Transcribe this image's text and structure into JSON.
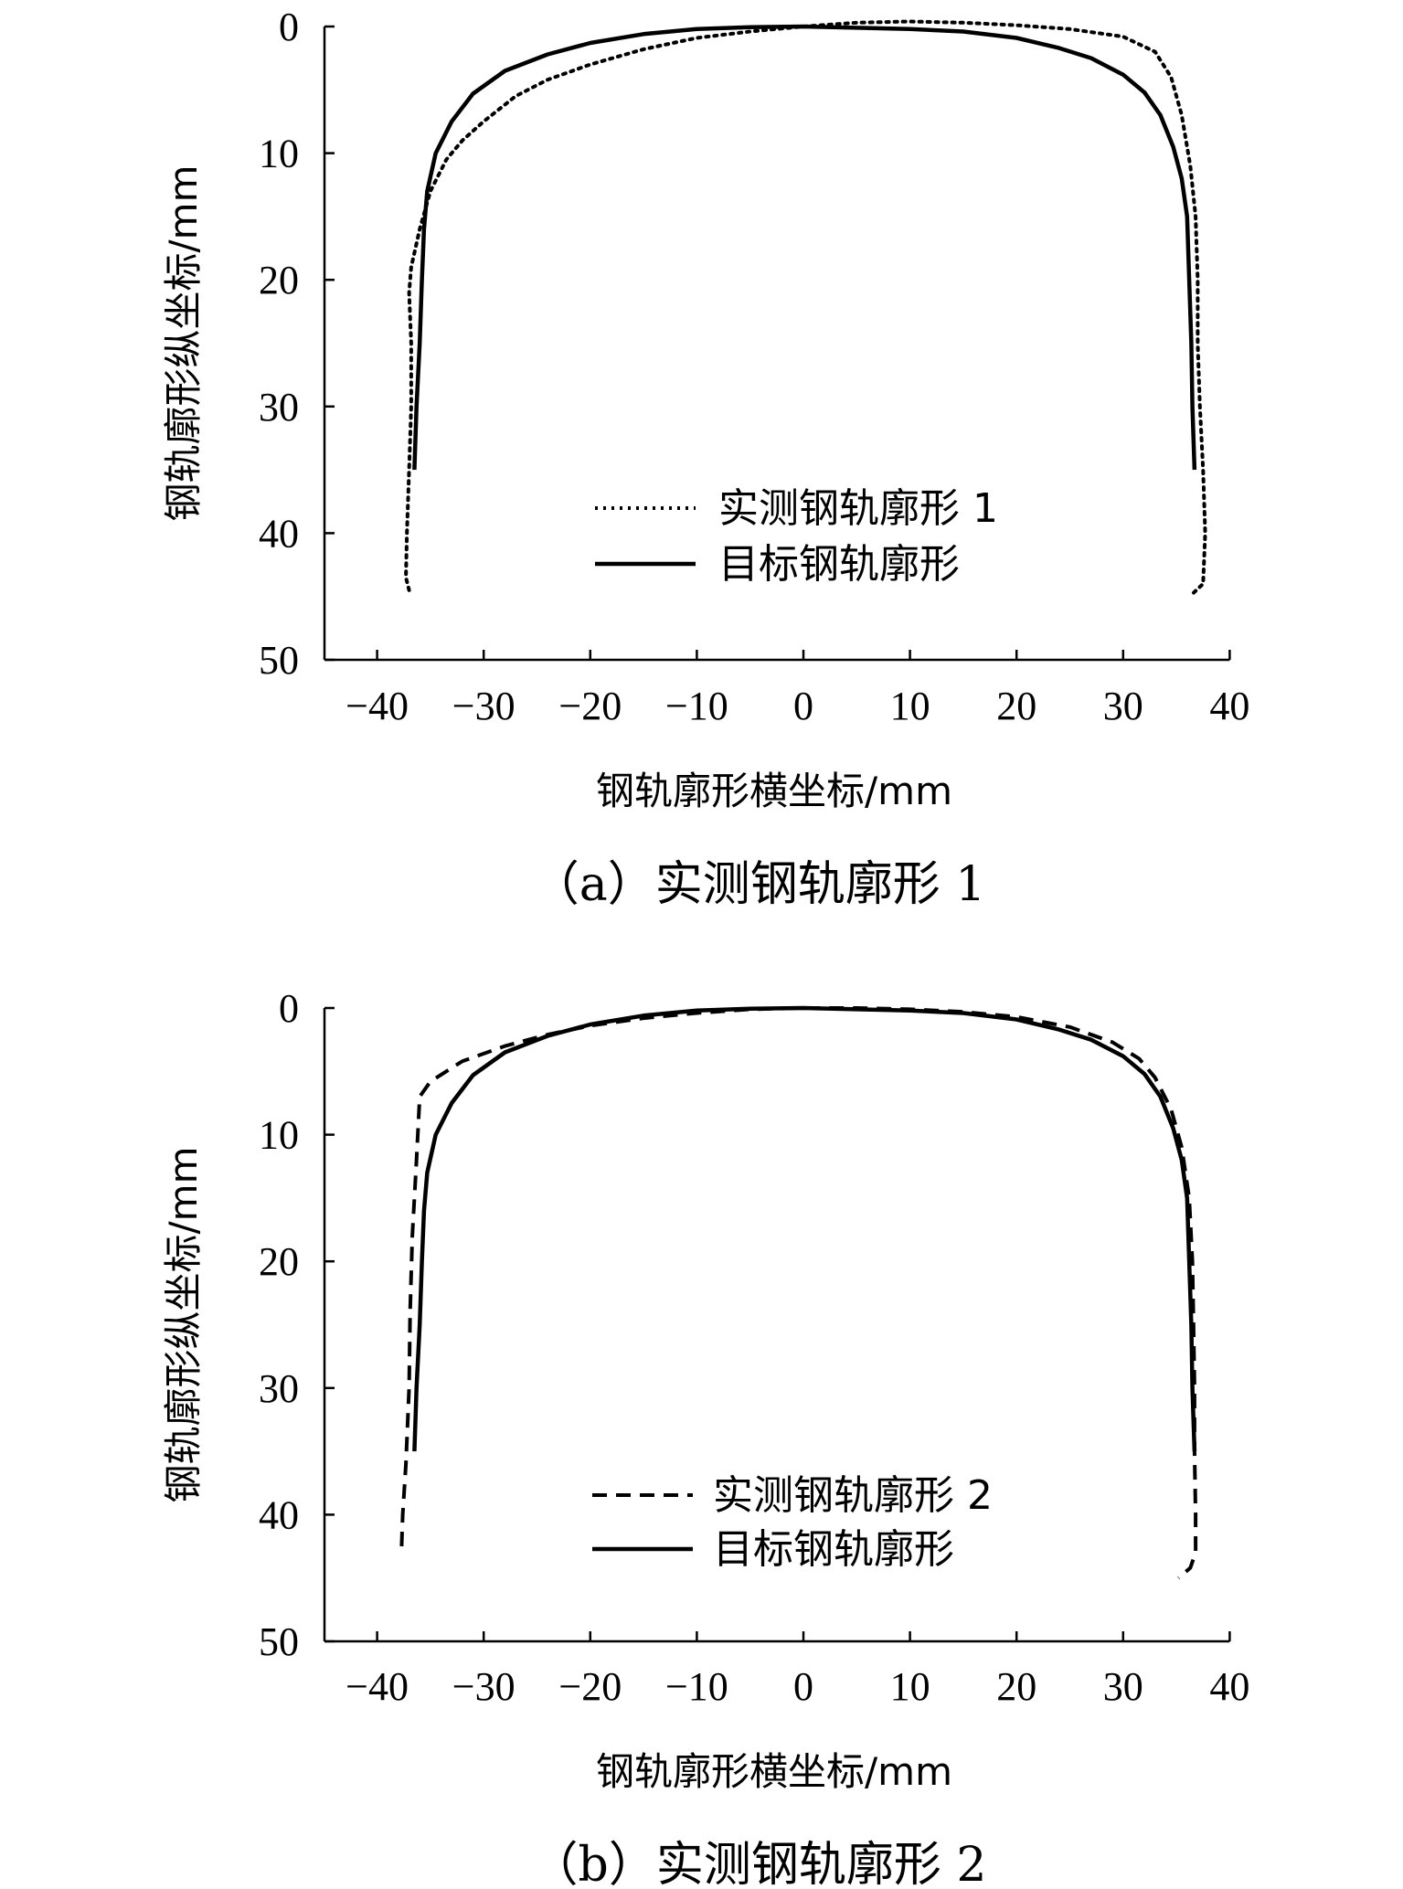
{
  "chart_data": [
    {
      "type": "line",
      "caption": "（a）实测钢轨廓形 1",
      "xlabel": "钢轨廓形横坐标/mm",
      "ylabel": "钢轨廓形纵坐标/mm",
      "xlim": [
        -45,
        40
      ],
      "ylim": [
        0,
        50
      ],
      "y_inverted": true,
      "x_ticks": [
        "−40",
        "−30",
        "−20",
        "−10",
        "0",
        "10",
        "20",
        "30",
        "40"
      ],
      "y_ticks": [
        "0",
        "10",
        "20",
        "30",
        "40",
        "50"
      ],
      "legend_position": "lower-center",
      "series": [
        {
          "name": "实测钢轨廓形 1",
          "style": "dotted",
          "color": "#000000",
          "points": [
            [
              -37.0,
              44.5
            ],
            [
              -37.3,
              43.5
            ],
            [
              -37.2,
              40
            ],
            [
              -37.0,
              35
            ],
            [
              -36.8,
              30
            ],
            [
              -36.8,
              25
            ],
            [
              -37.0,
              21
            ],
            [
              -36.8,
              19
            ],
            [
              -36.0,
              16
            ],
            [
              -35.0,
              13
            ],
            [
              -33.5,
              10.5
            ],
            [
              -32,
              9
            ],
            [
              -30,
              7.5
            ],
            [
              -27,
              5.5
            ],
            [
              -24,
              4.2
            ],
            [
              -20,
              3
            ],
            [
              -15,
              1.8
            ],
            [
              -10,
              0.9
            ],
            [
              -5,
              0.4
            ],
            [
              0,
              0
            ],
            [
              5,
              -0.3
            ],
            [
              10,
              -0.4
            ],
            [
              15,
              -0.3
            ],
            [
              20,
              -0.1
            ],
            [
              25,
              0.2
            ],
            [
              30,
              0.8
            ],
            [
              33,
              2
            ],
            [
              34.5,
              4
            ],
            [
              35.5,
              7
            ],
            [
              36.3,
              11
            ],
            [
              36.8,
              15
            ],
            [
              37.0,
              20
            ],
            [
              37.0,
              25
            ],
            [
              37.2,
              30
            ],
            [
              37.5,
              35
            ],
            [
              37.7,
              40
            ],
            [
              37.5,
              44
            ],
            [
              36.5,
              44.8
            ]
          ]
        },
        {
          "name": "目标钢轨廓形",
          "style": "solid",
          "color": "#000000",
          "points": [
            [
              -36.5,
              35
            ],
            [
              -36.3,
              30
            ],
            [
              -36.0,
              25
            ],
            [
              -35.8,
              20
            ],
            [
              -35.6,
              16
            ],
            [
              -35.3,
              13
            ],
            [
              -34.5,
              10
            ],
            [
              -33,
              7.5
            ],
            [
              -31,
              5.3
            ],
            [
              -28,
              3.5
            ],
            [
              -24,
              2.2
            ],
            [
              -20,
              1.3
            ],
            [
              -15,
              0.6
            ],
            [
              -10,
              0.2
            ],
            [
              -5,
              0.05
            ],
            [
              0,
              0
            ],
            [
              5,
              0.1
            ],
            [
              10,
              0.2
            ],
            [
              15,
              0.4
            ],
            [
              20,
              0.9
            ],
            [
              24,
              1.7
            ],
            [
              27,
              2.5
            ],
            [
              30,
              3.8
            ],
            [
              32,
              5.2
            ],
            [
              33.5,
              7
            ],
            [
              34.7,
              9.5
            ],
            [
              35.5,
              12
            ],
            [
              36.0,
              15
            ],
            [
              36.2,
              20
            ],
            [
              36.4,
              25
            ],
            [
              36.5,
              30
            ],
            [
              36.7,
              35
            ]
          ]
        }
      ]
    },
    {
      "type": "line",
      "caption": "（b）实测钢轨廓形 2",
      "xlabel": "钢轨廓形横坐标/mm",
      "ylabel": "钢轨廓形纵坐标/mm",
      "xlim": [
        -45,
        40
      ],
      "ylim": [
        0,
        50
      ],
      "y_inverted": true,
      "x_ticks": [
        "−40",
        "−30",
        "−20",
        "−10",
        "0",
        "10",
        "20",
        "30",
        "40"
      ],
      "y_ticks": [
        "0",
        "10",
        "20",
        "30",
        "40",
        "50"
      ],
      "legend_position": "lower-center",
      "series": [
        {
          "name": "实测钢轨廓形 2",
          "style": "dashed",
          "color": "#000000",
          "points": [
            [
              -37.7,
              42.5
            ],
            [
              -37.6,
              40
            ],
            [
              -37.3,
              36
            ],
            [
              -37.0,
              30
            ],
            [
              -36.9,
              24
            ],
            [
              -36.7,
              18
            ],
            [
              -36.3,
              12
            ],
            [
              -36.0,
              7
            ],
            [
              -35,
              5.8
            ],
            [
              -32,
              4.2
            ],
            [
              -28,
              3
            ],
            [
              -24,
              2.1
            ],
            [
              -20,
              1.4
            ],
            [
              -15,
              0.8
            ],
            [
              -10,
              0.4
            ],
            [
              -5,
              0.1
            ],
            [
              0,
              0
            ],
            [
              5,
              0
            ],
            [
              10,
              0.1
            ],
            [
              15,
              0.3
            ],
            [
              20,
              0.7
            ],
            [
              25,
              1.5
            ],
            [
              29,
              2.7
            ],
            [
              31.5,
              4
            ],
            [
              33,
              5.5
            ],
            [
              34.5,
              8
            ],
            [
              35.5,
              11
            ],
            [
              36.2,
              15
            ],
            [
              36.5,
              20
            ],
            [
              36.6,
              25
            ],
            [
              36.7,
              30
            ],
            [
              36.7,
              35
            ],
            [
              36.8,
              40
            ],
            [
              36.8,
              43
            ],
            [
              36.3,
              44.2
            ],
            [
              35.2,
              45
            ]
          ]
        },
        {
          "name": "目标钢轨廓形",
          "style": "solid",
          "color": "#000000",
          "points": [
            [
              -36.5,
              35
            ],
            [
              -36.3,
              30
            ],
            [
              -36.0,
              25
            ],
            [
              -35.8,
              20
            ],
            [
              -35.6,
              16
            ],
            [
              -35.3,
              13
            ],
            [
              -34.5,
              10
            ],
            [
              -33,
              7.5
            ],
            [
              -31,
              5.3
            ],
            [
              -28,
              3.5
            ],
            [
              -24,
              2.2
            ],
            [
              -20,
              1.3
            ],
            [
              -15,
              0.6
            ],
            [
              -10,
              0.2
            ],
            [
              -5,
              0.05
            ],
            [
              0,
              0
            ],
            [
              5,
              0.1
            ],
            [
              10,
              0.2
            ],
            [
              15,
              0.4
            ],
            [
              20,
              0.9
            ],
            [
              24,
              1.7
            ],
            [
              27,
              2.5
            ],
            [
              30,
              3.8
            ],
            [
              32,
              5.2
            ],
            [
              33.5,
              7
            ],
            [
              34.7,
              9.5
            ],
            [
              35.5,
              12
            ],
            [
              36.0,
              15
            ],
            [
              36.2,
              20
            ],
            [
              36.4,
              25
            ],
            [
              36.5,
              30
            ],
            [
              36.7,
              35
            ]
          ]
        }
      ]
    }
  ]
}
